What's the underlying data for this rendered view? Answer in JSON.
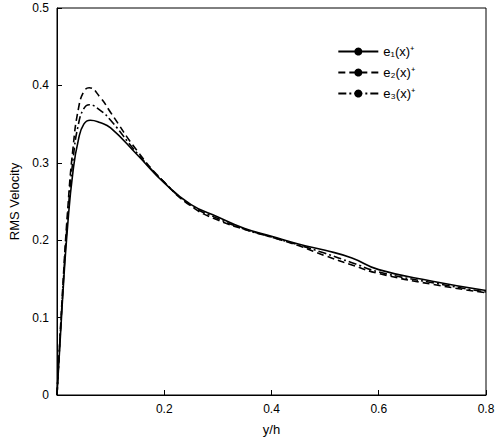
{
  "chart_data": {
    "type": "line",
    "x_label": "y/h",
    "y_label": "RMS Velocity",
    "xlim": [
      0,
      0.8
    ],
    "ylim": [
      0,
      0.5
    ],
    "xticks": [
      0.2,
      0.4,
      0.6,
      0.8
    ],
    "yticks": [
      0,
      0.1,
      0.2,
      0.3,
      0.4,
      0.5
    ],
    "grid": false,
    "legend": "upper right",
    "series": [
      {
        "name": "e₁(x)⁺",
        "color": "#000000",
        "line_style": "solid",
        "x": [
          0,
          0.01,
          0.02,
          0.03,
          0.04,
          0.05,
          0.062,
          0.08,
          0.1,
          0.15,
          0.2,
          0.25,
          0.3,
          0.35,
          0.4,
          0.45,
          0.5,
          0.55,
          0.6,
          0.7,
          0.8
        ],
        "values": [
          0,
          0.12,
          0.22,
          0.29,
          0.33,
          0.35,
          0.355,
          0.352,
          0.345,
          0.31,
          0.274,
          0.246,
          0.23,
          0.215,
          0.205,
          0.195,
          0.187,
          0.177,
          0.162,
          0.147,
          0.135
        ]
      },
      {
        "name": "e₂(x)⁺",
        "color": "#000000",
        "line_style": "dashed",
        "x": [
          0,
          0.01,
          0.02,
          0.03,
          0.04,
          0.05,
          0.06,
          0.08,
          0.1,
          0.15,
          0.2,
          0.25,
          0.3,
          0.35,
          0.4,
          0.45,
          0.5,
          0.55,
          0.6,
          0.7,
          0.8
        ],
        "values": [
          0,
          0.13,
          0.24,
          0.32,
          0.37,
          0.392,
          0.397,
          0.385,
          0.365,
          0.315,
          0.275,
          0.244,
          0.226,
          0.214,
          0.204,
          0.193,
          0.18,
          0.168,
          0.157,
          0.143,
          0.132
        ]
      },
      {
        "name": "e₃(x)⁺",
        "color": "#000000",
        "line_style": "dashdot",
        "x": [
          0,
          0.01,
          0.02,
          0.03,
          0.04,
          0.05,
          0.06,
          0.08,
          0.1,
          0.15,
          0.2,
          0.25,
          0.3,
          0.35,
          0.4,
          0.45,
          0.5,
          0.55,
          0.6,
          0.7,
          0.8
        ],
        "values": [
          0,
          0.125,
          0.23,
          0.305,
          0.35,
          0.37,
          0.375,
          0.368,
          0.355,
          0.312,
          0.275,
          0.245,
          0.228,
          0.214,
          0.204,
          0.194,
          0.183,
          0.171,
          0.159,
          0.145,
          0.133
        ]
      }
    ]
  }
}
